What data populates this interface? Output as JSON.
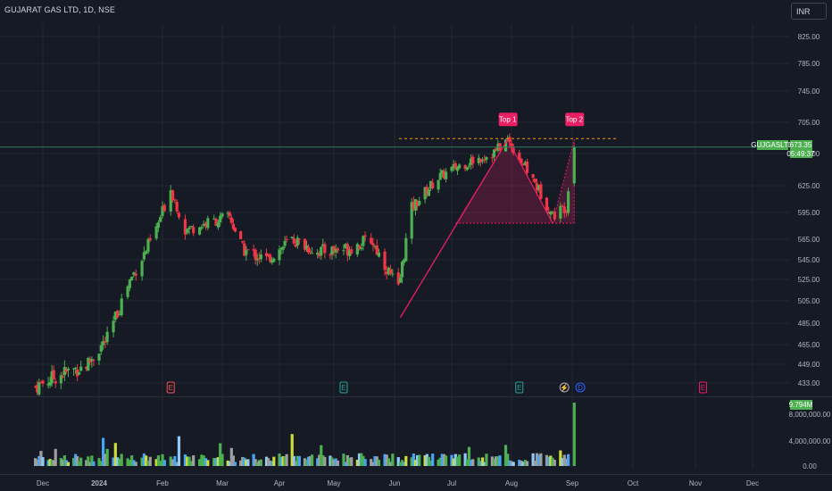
{
  "header": {
    "title": "GUJARAT GAS LTD, 1D, NSE",
    "currency": "INR"
  },
  "chart_data": {
    "type": "candlestick",
    "price_axis": {
      "ticks": [
        825,
        785,
        745,
        705,
        665,
        625,
        595,
        565,
        545,
        525,
        505,
        485,
        465,
        449,
        433
      ],
      "tick_labels": [
        "825.00",
        "785.00",
        "745.00",
        "705.00",
        "665.00",
        "625.00",
        "595.00",
        "565.00",
        "545.00",
        "525.00",
        "505.00",
        "485.00",
        "465.00",
        "449.00",
        "433.00"
      ],
      "grid": true
    },
    "volume_axis": {
      "ticks": [
        8000000,
        4000000,
        0
      ],
      "tick_labels": [
        "8,000,000.00",
        "4,000,000.00",
        "0.00"
      ]
    },
    "time_axis": {
      "labels": [
        "Dec",
        "2024",
        "Feb",
        "Mar",
        "Apr",
        "May",
        "Jun",
        "Jul",
        "Aug",
        "Sep",
        "Oct",
        "Nov",
        "Dec"
      ]
    },
    "price_path_keypoints": [
      {
        "date": "2023-11-27",
        "close": 430
      },
      {
        "date": "2023-12-10",
        "close": 440
      },
      {
        "date": "2023-12-25",
        "close": 448
      },
      {
        "date": "2024-01-05",
        "close": 470
      },
      {
        "date": "2024-01-15",
        "close": 520
      },
      {
        "date": "2024-01-28",
        "close": 570
      },
      {
        "date": "2024-02-05",
        "close": 622
      },
      {
        "date": "2024-02-12",
        "close": 575
      },
      {
        "date": "2024-02-25",
        "close": 585
      },
      {
        "date": "2024-03-05",
        "close": 590
      },
      {
        "date": "2024-03-12",
        "close": 555
      },
      {
        "date": "2024-03-25",
        "close": 545
      },
      {
        "date": "2024-04-08",
        "close": 565
      },
      {
        "date": "2024-04-22",
        "close": 553
      },
      {
        "date": "2024-05-08",
        "close": 556
      },
      {
        "date": "2024-05-20",
        "close": 565
      },
      {
        "date": "2024-06-03",
        "close": 515
      },
      {
        "date": "2024-06-10",
        "close": 600
      },
      {
        "date": "2024-06-24",
        "close": 635
      },
      {
        "date": "2024-07-05",
        "close": 650
      },
      {
        "date": "2024-07-22",
        "close": 665
      },
      {
        "date": "2024-07-30",
        "close": 683
      },
      {
        "date": "2024-08-12",
        "close": 632
      },
      {
        "date": "2024-08-22",
        "close": 592
      },
      {
        "date": "2024-08-29",
        "close": 602
      },
      {
        "date": "2024-09-02",
        "close": 673.35
      }
    ],
    "last_price": {
      "symbol": "GUJGASLTD",
      "value": "673.35",
      "countdown": "05:49:37"
    },
    "last_volume": {
      "value": "9.794M",
      "raw": 9794000
    },
    "pattern": {
      "name": "Double Top",
      "top1": {
        "label": "Top 1",
        "date": "2024-07-30",
        "price": 683
      },
      "top2": {
        "label": "Top 2",
        "date": "2024-09-02",
        "price": 683
      },
      "neckline_start": {
        "date": "2024-06-04",
        "price": 490
      },
      "valley": {
        "date": "2024-08-22",
        "price": 583
      }
    },
    "event_markers": [
      {
        "label": "E",
        "date": "2024-02-05",
        "kind": "earnings-red"
      },
      {
        "label": "E",
        "date": "2024-05-06",
        "kind": "earnings-green"
      },
      {
        "label": "E",
        "date": "2024-08-05",
        "kind": "earnings-green"
      },
      {
        "label": "",
        "date": "2024-08-28",
        "kind": "split"
      },
      {
        "label": "D",
        "date": "2024-09-05",
        "kind": "dividend"
      },
      {
        "label": "E",
        "date": "2024-11-05",
        "kind": "earnings-red"
      }
    ]
  }
}
